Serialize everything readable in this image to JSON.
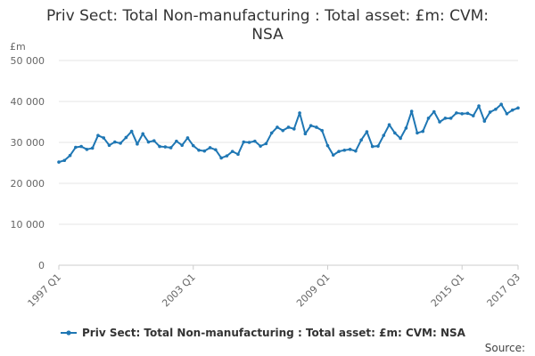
{
  "chart_data": {
    "type": "line",
    "title_lines": [
      "Priv Sect: Total Non-manufacturing : Total asset: £m: CVM:",
      "NSA"
    ],
    "y_unit": "£m",
    "ylim": [
      0,
      50000
    ],
    "y_ticks": [
      0,
      10000,
      20000,
      30000,
      40000,
      50000
    ],
    "y_tick_labels": [
      "0",
      "10 000",
      "20 000",
      "30 000",
      "40 000",
      "50 000"
    ],
    "grid": true,
    "x_ticks": [
      {
        "label": "1997 Q1",
        "index": 0
      },
      {
        "label": "2003 Q1",
        "index": 24
      },
      {
        "label": "2009 Q1",
        "index": 48
      },
      {
        "label": "2015 Q1",
        "index": 72
      },
      {
        "label": "2017 Q3",
        "index": 82
      }
    ],
    "legend_position": "bottom",
    "series": [
      {
        "name": "Priv Sect: Total Non-manufacturing : Total asset: £m: CVM: NSA",
        "color": "#1f77b4",
        "values": [
          25200,
          25600,
          26800,
          28800,
          29000,
          28300,
          28600,
          31700,
          31100,
          29300,
          30100,
          29800,
          31200,
          32700,
          29600,
          32100,
          30100,
          30400,
          29000,
          28900,
          28700,
          30300,
          29300,
          31100,
          29200,
          28100,
          27900,
          28700,
          28200,
          26200,
          26700,
          27800,
          27100,
          30100,
          30000,
          30300,
          29100,
          29700,
          32300,
          33700,
          32900,
          33700,
          33300,
          37200,
          32100,
          34100,
          33700,
          32900,
          29200,
          26900,
          27800,
          28100,
          28300,
          27900,
          30600,
          32600,
          29000,
          29100,
          31700,
          34300,
          32300,
          31000,
          33500,
          37600,
          32300,
          32700,
          35900,
          37500,
          35000,
          35900,
          35900,
          37200,
          37000,
          37100,
          36500,
          38900,
          35200,
          37400,
          38100,
          39300,
          37000,
          37900,
          38400
        ]
      }
    ]
  },
  "footer": {
    "source_label": "Source:"
  }
}
